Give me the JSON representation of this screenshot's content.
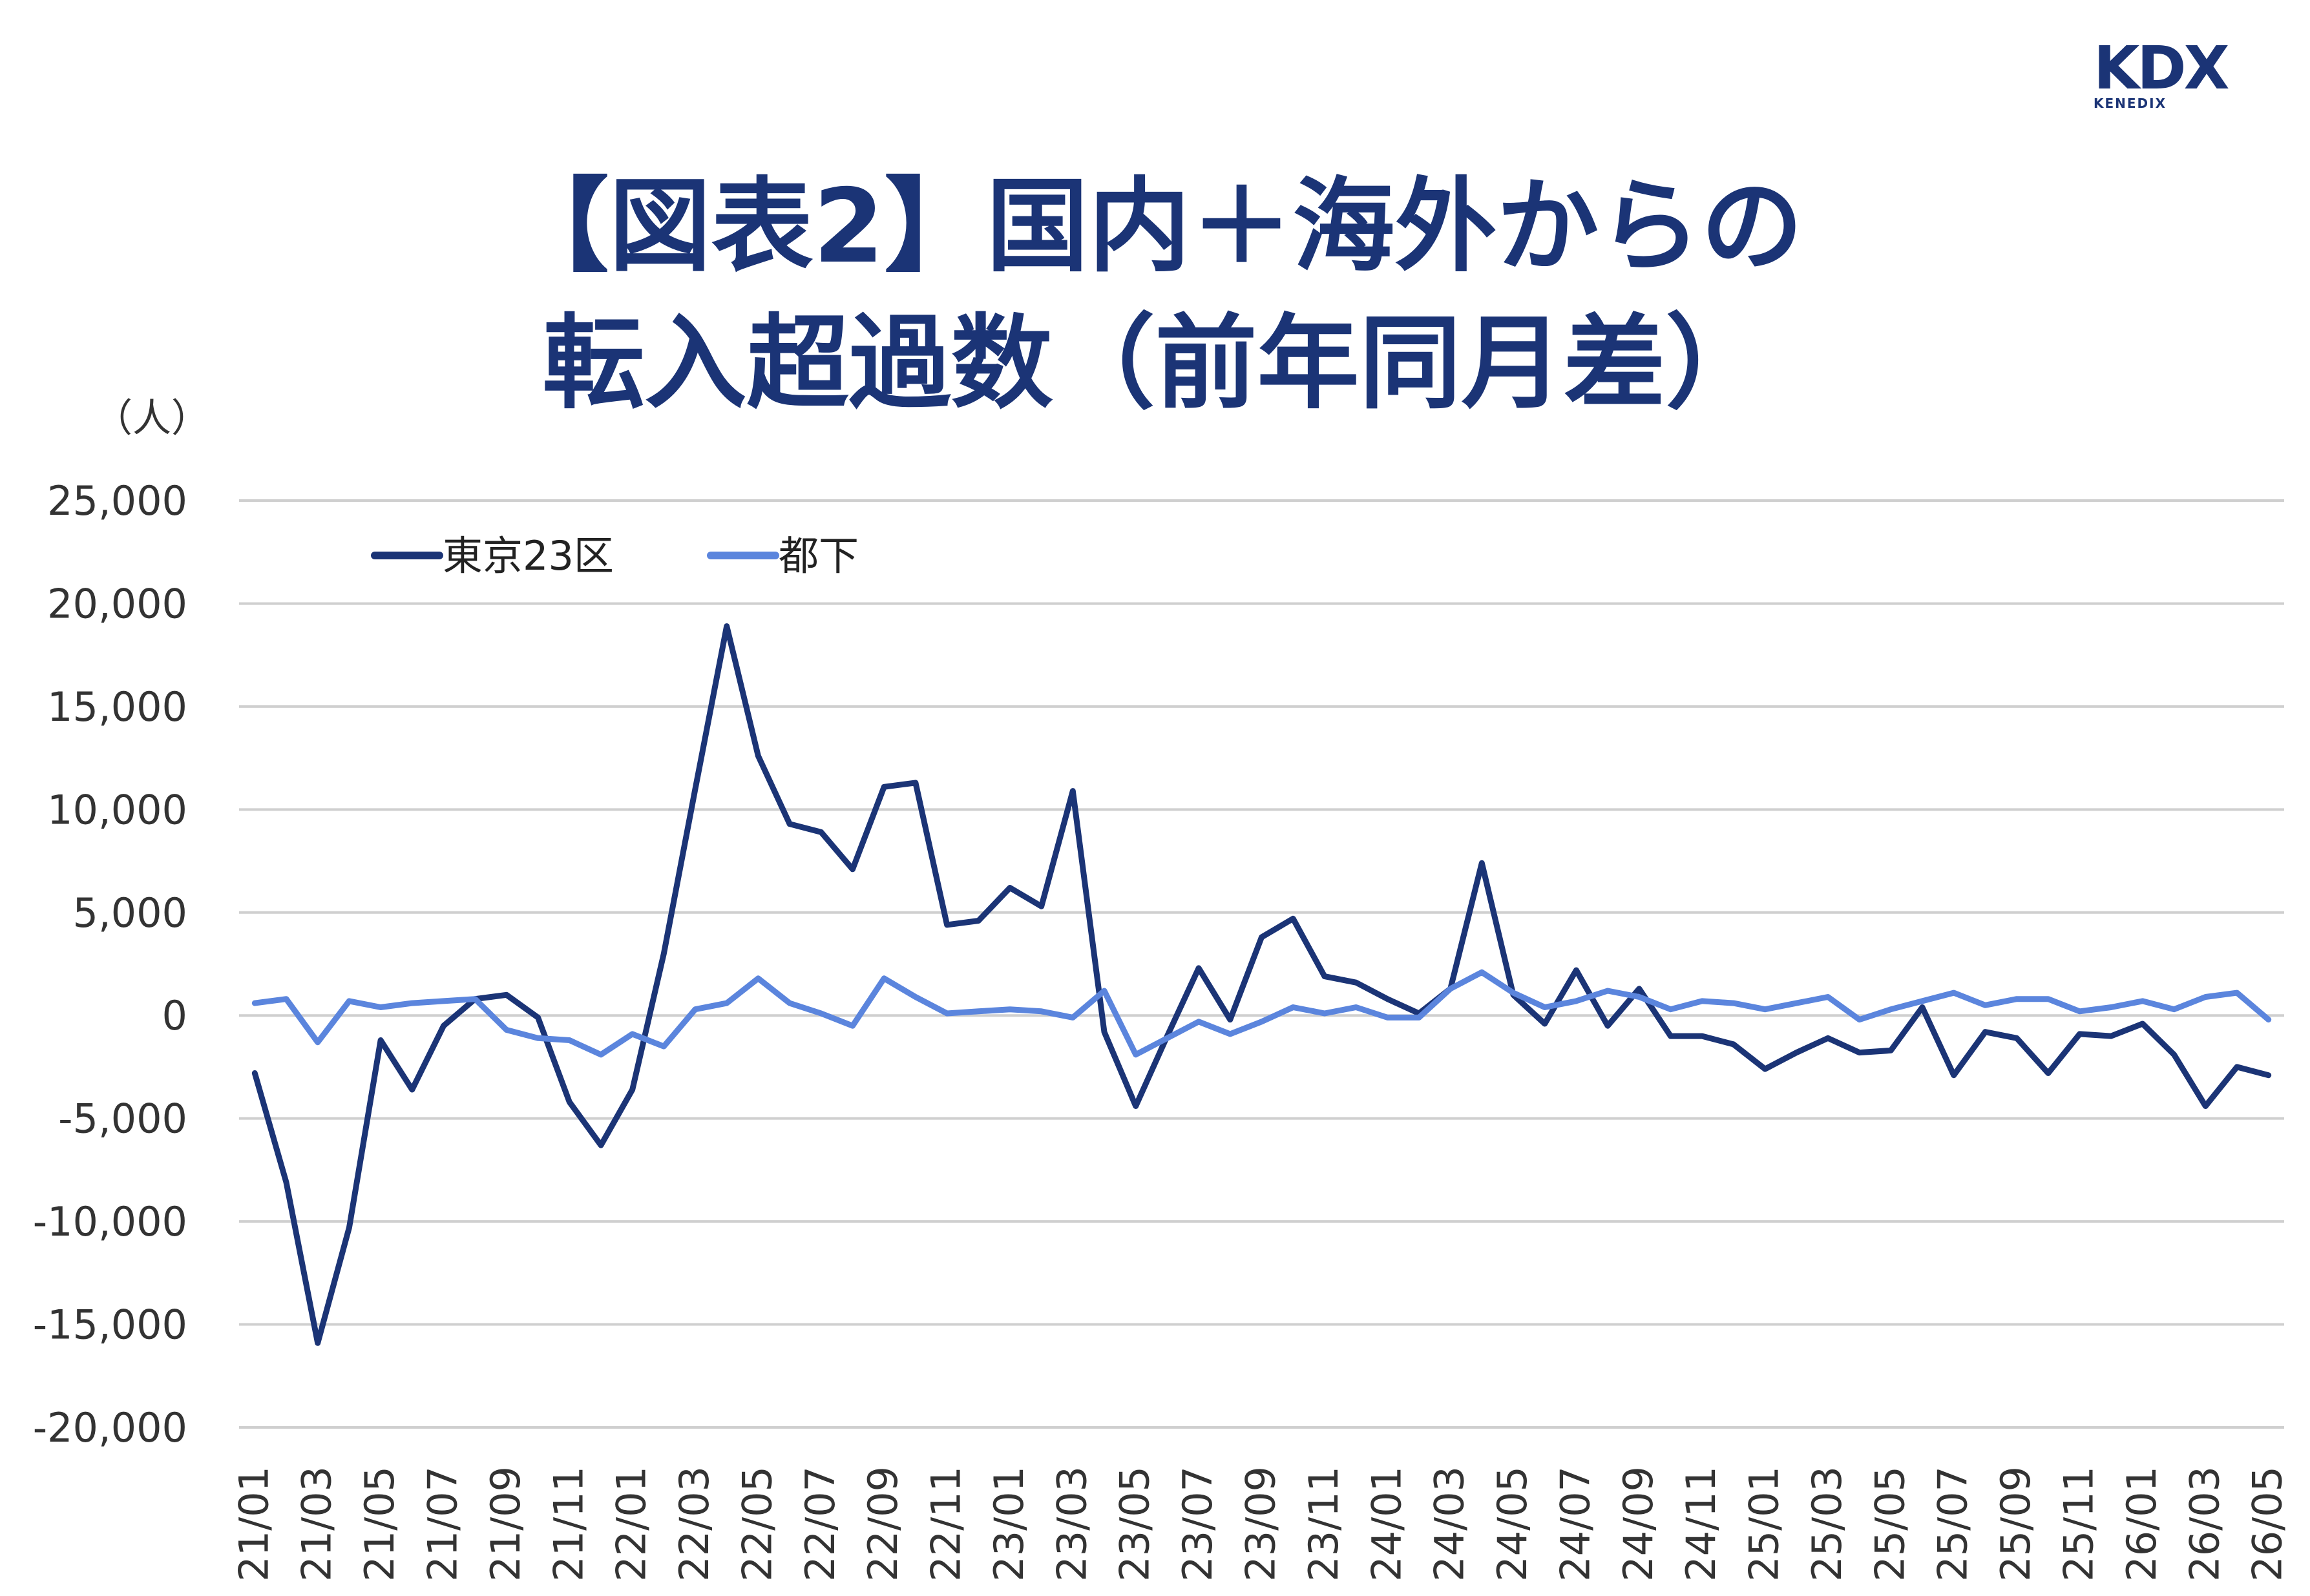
{
  "logo": {
    "main": "KDX",
    "sub": "KENEDIX"
  },
  "title_lines": [
    "【図表2】国内＋海外からの",
    "転入超過数（前年同月差）"
  ],
  "chart_data": {
    "type": "line",
    "title": "【図表2】国内＋海外からの転入超過数（前年同月差）",
    "unit_label": "（人）",
    "ylim": [
      -20000,
      25000
    ],
    "y_ticks": [
      25000,
      20000,
      15000,
      10000,
      5000,
      0,
      -5000,
      -10000,
      -15000,
      -20000
    ],
    "y_tick_labels": [
      "25,000",
      "20,000",
      "15,000",
      "10,000",
      "5,000",
      "0",
      "-5,000",
      "-10,000",
      "-15,000",
      "-20,000"
    ],
    "grid": true,
    "legend_position": "top-left",
    "x": [
      "21/01",
      "21/02",
      "21/03",
      "21/04",
      "21/05",
      "21/06",
      "21/07",
      "21/08",
      "21/09",
      "21/10",
      "21/11",
      "21/12",
      "22/01",
      "22/02",
      "22/03",
      "22/04",
      "22/05",
      "22/06",
      "22/07",
      "22/08",
      "22/09",
      "22/10",
      "22/11",
      "22/12",
      "23/01",
      "23/02",
      "23/03",
      "23/04",
      "23/05",
      "23/06",
      "23/07",
      "23/08",
      "23/09",
      "23/10",
      "23/11",
      "23/12",
      "24/01",
      "24/02",
      "24/03",
      "24/04",
      "24/05",
      "24/06",
      "24/07",
      "24/08",
      "24/09",
      "24/10",
      "24/11",
      "24/12",
      "25/01",
      "25/02",
      "25/03",
      "25/04",
      "25/05",
      "25/06",
      "25/07",
      "25/08",
      "25/09",
      "25/10",
      "25/11",
      "25/12",
      "26/01",
      "26/02",
      "26/03",
      "26/04",
      "26/05"
    ],
    "x_tick_labels": [
      "21/01",
      "21/03",
      "21/05",
      "21/07",
      "21/09",
      "21/11",
      "22/01",
      "22/03",
      "22/05",
      "22/07",
      "22/09",
      "22/11",
      "23/01",
      "23/03",
      "23/05",
      "23/07",
      "23/09",
      "23/11",
      "24/01",
      "24/03",
      "24/05",
      "24/07",
      "24/09",
      "24/11",
      "25/01",
      "25/03",
      "25/05",
      "25/07",
      "25/09",
      "25/11",
      "26/01",
      "26/03",
      "26/05"
    ],
    "series": [
      {
        "name": "東京23区",
        "color": "#1b3476",
        "values": [
          -2800,
          -8100,
          -15900,
          -10300,
          -1200,
          -3600,
          -500,
          800,
          1000,
          -100,
          -4200,
          -6300,
          -3600,
          3000,
          11000,
          18900,
          12600,
          9300,
          8900,
          7100,
          11100,
          11300,
          4400,
          4600,
          6200,
          5300,
          10900,
          -800,
          -4400,
          -1000,
          2300,
          -200,
          3800,
          4700,
          1900,
          1600,
          800,
          100,
          1300,
          7400,
          1000,
          -400,
          2200,
          -500,
          1300,
          -1000,
          -1000,
          -1400,
          -2600,
          -1800,
          -1100,
          -1800,
          -1700,
          400,
          -2900,
          -800,
          -1100,
          -2800,
          -900,
          -1000,
          -400,
          -1900,
          -4400,
          -2500,
          -2900
        ]
      },
      {
        "name": "都下",
        "color": "#5b85dd",
        "values": [
          600,
          800,
          -1300,
          700,
          400,
          600,
          700,
          800,
          -700,
          -1100,
          -1200,
          -1900,
          -900,
          -1500,
          300,
          600,
          1800,
          600,
          100,
          -500,
          1800,
          900,
          100,
          200,
          300,
          200,
          -100,
          1200,
          -1900,
          -1100,
          -300,
          -900,
          -300,
          400,
          100,
          400,
          -100,
          -100,
          1300,
          2100,
          1100,
          400,
          700,
          1200,
          900,
          300,
          700,
          600,
          300,
          600,
          900,
          -200,
          300,
          700,
          1100,
          500,
          800,
          800,
          200,
          400,
          700,
          300,
          900,
          1100,
          -200
        ]
      }
    ]
  }
}
